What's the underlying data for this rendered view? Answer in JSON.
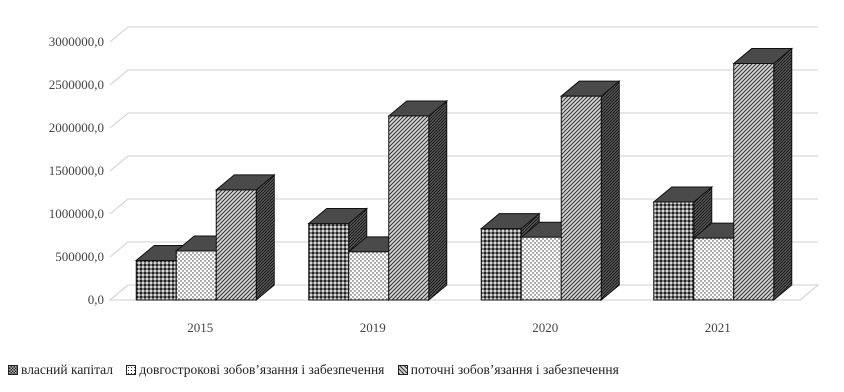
{
  "chart_data": {
    "type": "bar",
    "categories": [
      "2015",
      "2019",
      "2020",
      "2021"
    ],
    "series": [
      {
        "name": "власний капітал",
        "values": [
          460000,
          890000,
          830000,
          1140000
        ]
      },
      {
        "name": "довгострокові зобов’язання і забезпечення",
        "values": [
          570000,
          560000,
          730000,
          720000
        ]
      },
      {
        "name": "поточні зобов’язання і забезпечення",
        "values": [
          1280000,
          2140000,
          2370000,
          2750000
        ]
      }
    ],
    "yticks": [
      "0,0",
      "500000,0",
      "1000000,0",
      "1500000,0",
      "2000000,0",
      "2500000,0",
      "3000000,0"
    ],
    "ylim": [
      0,
      3000000
    ],
    "grid": true,
    "legend_position": "bottom",
    "title": "",
    "xlabel": "",
    "ylabel": ""
  }
}
